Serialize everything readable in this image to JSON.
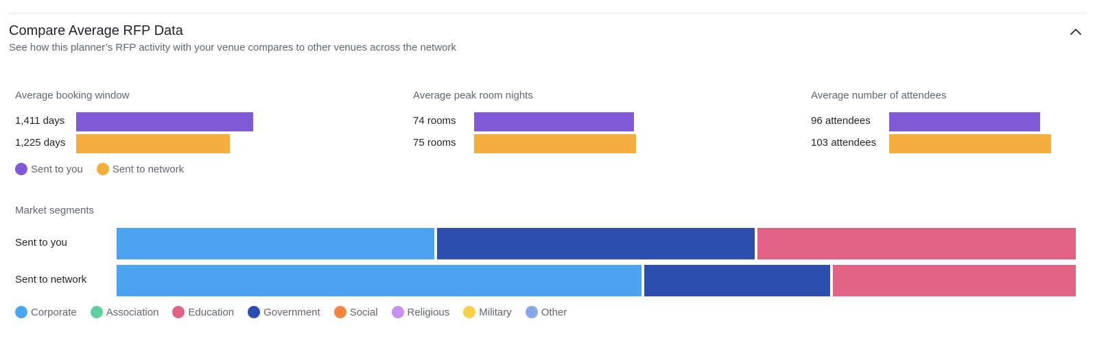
{
  "header": {
    "title": "Compare Average RFP Data",
    "subtitle": "See how this planner’s RFP activity with your venue compares to other venues across the network",
    "collapse_icon": "chevron-up-icon"
  },
  "colors": {
    "sent_to_you": "#8159d6",
    "sent_to_network": "#f4ae3d",
    "corporate": "#4ea3f1",
    "association": "#5dd1a0",
    "education": "#e06285",
    "government": "#2b4eb0",
    "social": "#f08544",
    "religious": "#c892ee",
    "military": "#f6d147",
    "other": "#86a9e6"
  },
  "metrics": [
    {
      "label": "Average booking window",
      "you_text": "1,411 days",
      "network_text": "1,225 days"
    },
    {
      "label": "Average peak room nights",
      "you_text": "74 rooms",
      "network_text": "75 rooms"
    },
    {
      "label": "Average number of attendees",
      "you_text": "96 attendees",
      "network_text": "103 attendees"
    }
  ],
  "rfp_legend": [
    {
      "label": "Sent to you",
      "color": "#8159d6"
    },
    {
      "label": "Sent to network",
      "color": "#f4ae3d"
    }
  ],
  "segments": {
    "title": "Market segments",
    "rows": [
      {
        "label": "Sent to you"
      },
      {
        "label": "Sent to network"
      }
    ],
    "legend": [
      {
        "label": "Corporate",
        "color": "#4ea3f1"
      },
      {
        "label": "Association",
        "color": "#5dd1a0"
      },
      {
        "label": "Education",
        "color": "#e06285"
      },
      {
        "label": "Government",
        "color": "#2b4eb0"
      },
      {
        "label": "Social",
        "color": "#f08544"
      },
      {
        "label": "Religious",
        "color": "#c892ee"
      },
      {
        "label": "Military",
        "color": "#f6d147"
      },
      {
        "label": "Other",
        "color": "#86a9e6"
      }
    ]
  },
  "chart_data": [
    {
      "type": "bar",
      "orientation": "horizontal",
      "title": "Average booking window",
      "categories": [
        "Sent to you",
        "Sent to network"
      ],
      "values": [
        1411,
        1225
      ],
      "unit": "days",
      "colors": [
        "#8159d6",
        "#f4ae3d"
      ]
    },
    {
      "type": "bar",
      "orientation": "horizontal",
      "title": "Average peak room nights",
      "categories": [
        "Sent to you",
        "Sent to network"
      ],
      "values": [
        74,
        75
      ],
      "unit": "rooms",
      "colors": [
        "#8159d6",
        "#f4ae3d"
      ]
    },
    {
      "type": "bar",
      "orientation": "horizontal",
      "title": "Average number of attendees",
      "categories": [
        "Sent to you",
        "Sent to network"
      ],
      "values": [
        96,
        103
      ],
      "unit": "attendees",
      "colors": [
        "#8159d6",
        "#f4ae3d"
      ]
    },
    {
      "type": "bar",
      "stacked": "percent",
      "orientation": "horizontal",
      "title": "Market segments",
      "categories": [
        "Sent to you",
        "Sent to network"
      ],
      "series": [
        {
          "name": "Corporate",
          "values": [
            33.3,
            55.0
          ],
          "color": "#4ea3f1"
        },
        {
          "name": "Government",
          "values": [
            33.3,
            19.5
          ],
          "color": "#2b4eb0"
        },
        {
          "name": "Education",
          "values": [
            33.3,
            25.5
          ],
          "color": "#e06285"
        }
      ]
    }
  ]
}
